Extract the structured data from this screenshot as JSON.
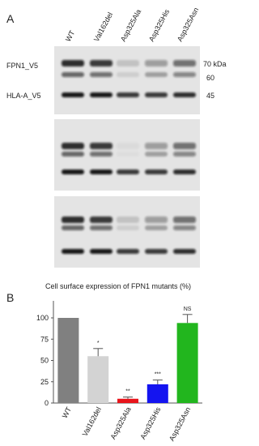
{
  "panel_a": {
    "label": "A",
    "lanes": [
      "WT",
      "Val162del",
      "Asp325Ala",
      "Asp325His",
      "Asp325Asn"
    ],
    "row_labels": [
      "FPN1_V5",
      "HLA-A_V5"
    ],
    "markers": [
      "70 kDa",
      "60",
      "45"
    ]
  },
  "panel_b": {
    "label": "B"
  },
  "chart_data": {
    "type": "bar",
    "title": "Cell surface expression of FPN1 mutants (%)",
    "categories": [
      "WT",
      "Val162del",
      "Asp325Ala",
      "Asp325His",
      "Asp325Asn"
    ],
    "values": [
      100,
      55,
      5,
      22,
      94
    ],
    "errors": [
      0,
      9,
      2,
      5,
      10
    ],
    "significance": [
      null,
      "*",
      "**",
      "***",
      "NS"
    ],
    "colors": [
      "#808080",
      "#d3d3d3",
      "#e8141b",
      "#1414f0",
      "#22b61e"
    ],
    "ylim": [
      0,
      120
    ],
    "yticks": [
      0,
      25,
      50,
      75,
      100
    ]
  }
}
